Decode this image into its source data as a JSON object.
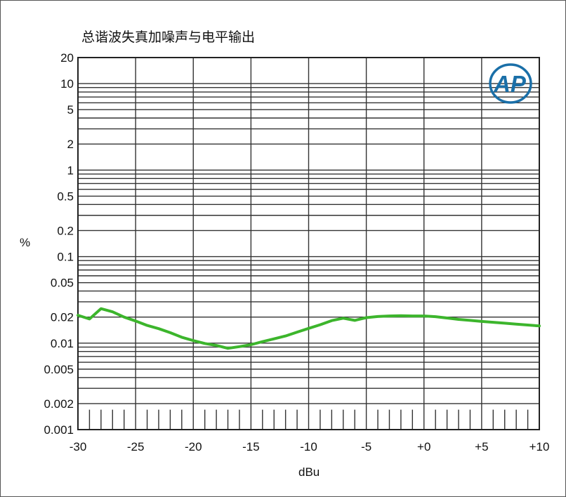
{
  "chart_data": {
    "type": "line",
    "title": "总谐波失真加噪声与电平输出",
    "xlabel": "dBu",
    "ylabel": "%",
    "x_scale": "linear",
    "y_scale": "log",
    "xlim": [
      -30,
      10
    ],
    "ylim": [
      0.001,
      20
    ],
    "x_ticks": [
      -30,
      -25,
      -20,
      -15,
      -10,
      -5,
      0,
      5,
      10
    ],
    "x_tick_labels": [
      "-30",
      "-25",
      "-20",
      "-15",
      "-10",
      "-5",
      "+0",
      "+5",
      "+10"
    ],
    "y_ticks": [
      20,
      10,
      5,
      2,
      1,
      0.5,
      0.2,
      0.1,
      0.05,
      0.02,
      0.01,
      0.005,
      0.002,
      0.001
    ],
    "y_tick_labels": [
      "20",
      "10",
      "5",
      "2",
      "1",
      "0.5",
      "0.2",
      "0.1",
      "0.05",
      "0.02",
      "0.01",
      "0.005",
      "0.002",
      "0.001"
    ],
    "grid": true,
    "series": [
      {
        "color": "#3cb52c",
        "x": [
          -30,
          -29,
          -28,
          -27,
          -26,
          -25,
          -24,
          -23,
          -22,
          -21,
          -20,
          -19,
          -18,
          -17,
          -16,
          -15,
          -14,
          -13,
          -12,
          -11,
          -10,
          -9,
          -8,
          -7,
          -6,
          -5,
          -4,
          -3,
          -2,
          -1,
          0,
          1,
          2,
          3,
          4,
          5,
          6,
          7,
          8,
          9,
          10
        ],
        "y": [
          0.021,
          0.019,
          0.025,
          0.023,
          0.02,
          0.018,
          0.016,
          0.0147,
          0.0132,
          0.0117,
          0.0107,
          0.0099,
          0.0094,
          0.0087,
          0.0091,
          0.0096,
          0.0104,
          0.0112,
          0.0121,
          0.0134,
          0.0148,
          0.0163,
          0.0182,
          0.0194,
          0.0183,
          0.0197,
          0.0203,
          0.0206,
          0.0207,
          0.0206,
          0.0206,
          0.0202,
          0.0195,
          0.0188,
          0.0183,
          0.0178,
          0.0174,
          0.017,
          0.0166,
          0.0162,
          0.0158
        ]
      }
    ]
  },
  "logo": {
    "text": "AP",
    "color": "#1a6fa8"
  }
}
